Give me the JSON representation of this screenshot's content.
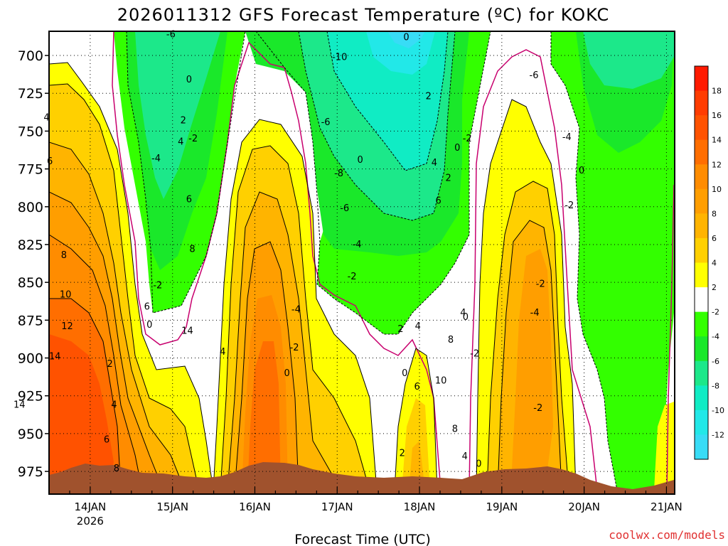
{
  "chart_data": {
    "type": "contour",
    "title": "2026011312 GFS Forecast Temperature (ºC) for KOKC",
    "xlabel": "Forecast Time (UTC)",
    "ylabel": "",
    "credit": "coolwx.com/models",
    "x_ticks": [
      {
        "day": 14,
        "label": "14JAN",
        "sub": "2026"
      },
      {
        "day": 15,
        "label": "15JAN",
        "sub": ""
      },
      {
        "day": 16,
        "label": "16JAN",
        "sub": ""
      },
      {
        "day": 17,
        "label": "17JAN",
        "sub": ""
      },
      {
        "day": 18,
        "label": "18JAN",
        "sub": ""
      },
      {
        "day": 19,
        "label": "19JAN",
        "sub": ""
      },
      {
        "day": 20,
        "label": "20JAN",
        "sub": ""
      },
      {
        "day": 21,
        "label": "21JAN",
        "sub": ""
      }
    ],
    "xlim": [
      13.5,
      21.1
    ],
    "y_ticks": [
      700,
      725,
      750,
      775,
      800,
      825,
      850,
      875,
      900,
      925,
      950,
      975
    ],
    "ylim": [
      990,
      684
    ],
    "units": "ºC",
    "colorbar_levels": [
      18,
      16,
      14,
      12,
      10,
      8,
      6,
      4,
      2,
      -2,
      -4,
      -6,
      -8,
      -10,
      -12
    ],
    "colorbar_bins": [
      {
        "low": 18,
        "high": 20,
        "color": "#ff1a00"
      },
      {
        "low": 16,
        "high": 18,
        "color": "#ff3c00"
      },
      {
        "low": 14,
        "high": 16,
        "color": "#ff5200"
      },
      {
        "low": 12,
        "high": 14,
        "color": "#ff6e00"
      },
      {
        "low": 10,
        "high": 12,
        "color": "#ff8c00"
      },
      {
        "low": 8,
        "high": 10,
        "color": "#ff9e00"
      },
      {
        "low": 6,
        "high": 8,
        "color": "#ffb400"
      },
      {
        "low": 4,
        "high": 6,
        "color": "#ffd000"
      },
      {
        "low": 2,
        "high": 4,
        "color": "#ffff00"
      },
      {
        "low": -2,
        "high": 2,
        "color": "#ffffff"
      },
      {
        "low": -4,
        "high": -2,
        "color": "#33ff00"
      },
      {
        "low": -6,
        "high": -4,
        "color": "#1ae82a"
      },
      {
        "low": -8,
        "high": -6,
        "color": "#1ce88a"
      },
      {
        "low": -10,
        "high": -8,
        "color": "#10ecc4"
      },
      {
        "low": -12,
        "high": -10,
        "color": "#22e8e8"
      },
      {
        "low": -14,
        "high": -12,
        "color": "#38dcf6"
      }
    ],
    "contour_labels": [
      {
        "text": "-6",
        "day": 14.98,
        "p": 687
      },
      {
        "text": "-10",
        "day": 17.03,
        "p": 702
      },
      {
        "text": "-6",
        "day": 16.86,
        "p": 745
      },
      {
        "text": "-8",
        "day": 17.02,
        "p": 779
      },
      {
        "text": "-6",
        "day": 17.09,
        "p": 802
      },
      {
        "text": "-4",
        "day": 17.24,
        "p": 826
      },
      {
        "text": "-2",
        "day": 17.18,
        "p": 847
      },
      {
        "text": "-4",
        "day": 16.5,
        "p": 869
      },
      {
        "text": "-2",
        "day": 16.48,
        "p": 894
      },
      {
        "text": "0",
        "day": 16.39,
        "p": 911
      },
      {
        "text": "-4",
        "day": 14.8,
        "p": 769
      },
      {
        "text": "-2",
        "day": 14.82,
        "p": 853
      },
      {
        "text": "0",
        "day": 14.72,
        "p": 879
      },
      {
        "text": "0",
        "day": 15.2,
        "p": 717
      },
      {
        "text": "2",
        "day": 15.13,
        "p": 744
      },
      {
        "text": "4",
        "day": 15.1,
        "p": 758
      },
      {
        "text": "6",
        "day": 15.2,
        "p": 796
      },
      {
        "text": "8",
        "day": 15.24,
        "p": 829
      },
      {
        "text": "6",
        "day": 14.69,
        "p": 867
      },
      {
        "text": "14",
        "day": 15.18,
        "p": 883
      },
      {
        "text": "4",
        "day": 15.61,
        "p": 897
      },
      {
        "text": "-2",
        "day": 15.25,
        "p": 756
      },
      {
        "text": "0",
        "day": 17.28,
        "p": 770
      },
      {
        "text": "0",
        "day": 17.84,
        "p": 689
      },
      {
        "text": "2",
        "day": 18.11,
        "p": 728
      },
      {
        "text": "4",
        "day": 18.18,
        "p": 772
      },
      {
        "text": "6",
        "day": 18.23,
        "p": 797
      },
      {
        "text": "2",
        "day": 18.35,
        "p": 782
      },
      {
        "text": "0",
        "day": 18.46,
        "p": 762
      },
      {
        "text": "-2",
        "day": 18.58,
        "p": 756
      },
      {
        "text": "-6",
        "day": 19.39,
        "p": 714
      },
      {
        "text": "-4",
        "day": 19.79,
        "p": 755
      },
      {
        "text": "0",
        "day": 19.97,
        "p": 777
      },
      {
        "text": "-2",
        "day": 19.82,
        "p": 800
      },
      {
        "text": "-2",
        "day": 19.47,
        "p": 852
      },
      {
        "text": "-4",
        "day": 19.4,
        "p": 871
      },
      {
        "text": "0",
        "day": 18.56,
        "p": 874
      },
      {
        "text": "-2",
        "day": 18.67,
        "p": 898
      },
      {
        "text": "4",
        "day": 18.53,
        "p": 871
      },
      {
        "text": "8",
        "day": 18.38,
        "p": 889
      },
      {
        "text": "4",
        "day": 17.98,
        "p": 880
      },
      {
        "text": "2",
        "day": 17.77,
        "p": 882
      },
      {
        "text": "0",
        "day": 17.82,
        "p": 911
      },
      {
        "text": "6",
        "day": 17.97,
        "p": 920
      },
      {
        "text": "10",
        "day": 18.26,
        "p": 916
      },
      {
        "text": "8",
        "day": 18.43,
        "p": 948
      },
      {
        "text": "4",
        "day": 18.55,
        "p": 966
      },
      {
        "text": "2",
        "day": 17.79,
        "p": 964
      },
      {
        "text": "0",
        "day": 18.72,
        "p": 971
      },
      {
        "text": "-2",
        "day": 19.44,
        "p": 934
      },
      {
        "text": "4",
        "day": 13.47,
        "p": 742
      },
      {
        "text": "6",
        "day": 13.51,
        "p": 771
      },
      {
        "text": "8",
        "day": 13.68,
        "p": 833
      },
      {
        "text": "10",
        "day": 13.7,
        "p": 859
      },
      {
        "text": "12",
        "day": 13.72,
        "p": 880
      },
      {
        "text": "14",
        "day": 13.57,
        "p": 900
      },
      {
        "text": "14",
        "day": 13.14,
        "p": 932
      },
      {
        "text": "2",
        "day": 14.24,
        "p": 905
      },
      {
        "text": "4",
        "day": 14.29,
        "p": 932
      },
      {
        "text": "6",
        "day": 14.2,
        "p": 955
      },
      {
        "text": "8",
        "day": 14.32,
        "p": 974
      }
    ]
  }
}
